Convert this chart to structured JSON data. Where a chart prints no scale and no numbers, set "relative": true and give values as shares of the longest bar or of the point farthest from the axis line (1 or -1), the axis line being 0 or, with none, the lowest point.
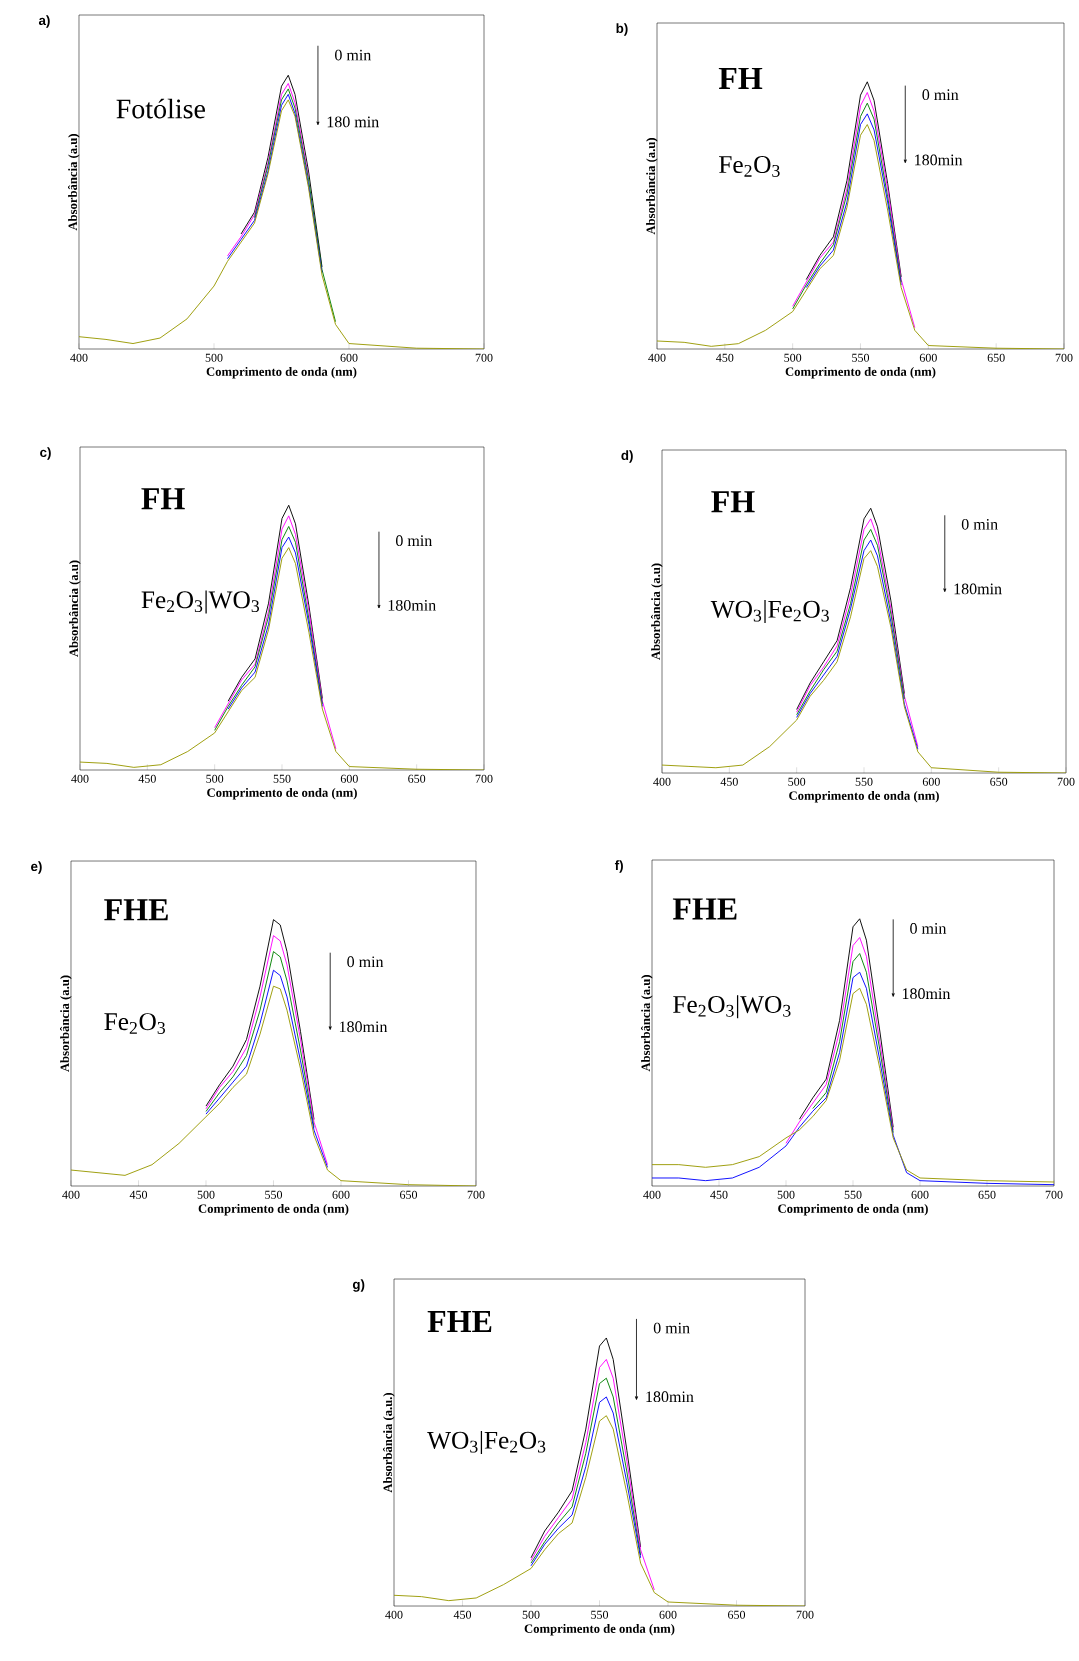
{
  "chart_data": [
    {
      "type": "line",
      "title": "Fotólise",
      "xlabel": "Comprimento de onda (nm)",
      "ylabel": "Absorbância (a.u)",
      "annotations": [
        "a)",
        "0 min",
        "180 min"
      ],
      "relative": true,
      "xlim": [
        400,
        700
      ],
      "xticks": [
        400,
        500,
        600,
        700
      ],
      "x": [
        400,
        420,
        440,
        460,
        480,
        500,
        510,
        520,
        530,
        540,
        550,
        555,
        560,
        570,
        580,
        590,
        600,
        650,
        700
      ],
      "series": [
        {
          "color": "#000000",
          "values": [
            null,
            null,
            null,
            null,
            null,
            null,
            null,
            0.42,
            0.5,
            0.7,
            0.96,
            1.0,
            0.93,
            0.65,
            0.3,
            null,
            null,
            null,
            null
          ]
        },
        {
          "color": "#ff00ff",
          "values": [
            null,
            null,
            null,
            null,
            null,
            null,
            0.34,
            0.41,
            0.49,
            0.68,
            0.93,
            0.97,
            0.9,
            0.63,
            null,
            null,
            null,
            null,
            null
          ]
        },
        {
          "color": "#008000",
          "values": [
            null,
            null,
            null,
            null,
            null,
            null,
            null,
            null,
            0.48,
            0.67,
            0.91,
            0.95,
            0.88,
            0.62,
            0.29,
            0.1,
            null,
            null,
            null
          ]
        },
        {
          "color": "#0000ff",
          "values": [
            null,
            null,
            null,
            null,
            null,
            null,
            0.33,
            0.4,
            0.47,
            0.65,
            0.89,
            0.93,
            0.86,
            0.6,
            0.28,
            null,
            null,
            null,
            null
          ]
        },
        {
          "color": "#999900",
          "values": [
            0.045,
            0.035,
            0.02,
            0.04,
            0.11,
            0.23,
            0.32,
            0.39,
            0.46,
            0.64,
            0.87,
            0.91,
            0.85,
            0.59,
            0.27,
            0.09,
            0.02,
            0.003,
            0
          ]
        }
      ]
    },
    {
      "type": "line",
      "title": "FH",
      "subtitle": "Fe$_{2}$O$_{3}$",
      "xlabel": "Comprimento de onda (nm)",
      "ylabel": "Absorbância (a.u)",
      "annotations": [
        "b)",
        "0 min",
        "180min"
      ],
      "relative": true,
      "xlim": [
        400,
        700
      ],
      "xticks": [
        400,
        450,
        500,
        550,
        600,
        650,
        700
      ],
      "x": [
        400,
        420,
        440,
        460,
        480,
        500,
        510,
        520,
        530,
        540,
        550,
        555,
        560,
        570,
        580,
        590,
        600,
        650,
        700
      ],
      "series": [
        {
          "color": "#000000",
          "values": [
            null,
            null,
            null,
            null,
            null,
            null,
            0.26,
            0.35,
            0.42,
            0.63,
            0.95,
            1.0,
            0.93,
            0.62,
            0.27,
            null,
            null,
            null,
            null
          ]
        },
        {
          "color": "#ff00ff",
          "values": [
            null,
            null,
            null,
            null,
            null,
            0.16,
            0.25,
            0.34,
            0.4,
            0.6,
            0.91,
            0.96,
            0.89,
            0.6,
            0.26,
            0.08,
            null,
            null,
            null
          ]
        },
        {
          "color": "#008000",
          "values": [
            null,
            null,
            null,
            null,
            null,
            0.15,
            0.24,
            0.32,
            0.39,
            0.58,
            0.87,
            0.92,
            0.86,
            0.57,
            0.25,
            null,
            null,
            null,
            null
          ]
        },
        {
          "color": "#0000ff",
          "values": [
            null,
            null,
            null,
            null,
            null,
            null,
            0.23,
            0.31,
            0.37,
            0.55,
            0.84,
            0.88,
            0.82,
            0.55,
            0.24,
            null,
            null,
            null,
            null
          ]
        },
        {
          "color": "#999900",
          "values": [
            0.03,
            0.025,
            0.01,
            0.02,
            0.07,
            0.14,
            0.22,
            0.3,
            0.35,
            0.53,
            0.8,
            0.84,
            0.78,
            0.52,
            0.23,
            0.07,
            0.013,
            0.003,
            0
          ]
        }
      ]
    },
    {
      "type": "line",
      "title": "FH",
      "subtitle": "Fe$_{2}$O$_{3}$|WO$_{3}$",
      "xlabel": "Comprimento de onda (nm)",
      "ylabel": "Absorbância (a.u)",
      "annotations": [
        "c)",
        "0 min",
        "180min"
      ],
      "relative": true,
      "xlim": [
        400,
        700
      ],
      "xticks": [
        400,
        450,
        500,
        550,
        600,
        650,
        700
      ],
      "x": [
        400,
        420,
        440,
        460,
        480,
        500,
        510,
        520,
        530,
        540,
        550,
        555,
        560,
        570,
        580,
        590,
        600,
        650,
        700
      ],
      "series": [
        {
          "color": "#000000",
          "values": [
            null,
            null,
            null,
            null,
            null,
            null,
            0.26,
            0.35,
            0.42,
            0.63,
            0.95,
            1.0,
            0.93,
            0.62,
            0.27,
            null,
            null,
            null,
            null
          ]
        },
        {
          "color": "#ff00ff",
          "values": [
            null,
            null,
            null,
            null,
            null,
            0.16,
            0.25,
            0.34,
            0.4,
            0.6,
            0.91,
            0.96,
            0.89,
            0.6,
            0.26,
            0.08,
            null,
            null,
            null
          ]
        },
        {
          "color": "#008000",
          "values": [
            null,
            null,
            null,
            null,
            null,
            0.15,
            0.24,
            0.32,
            0.39,
            0.58,
            0.87,
            0.92,
            0.86,
            0.57,
            0.25,
            null,
            null,
            null,
            null
          ]
        },
        {
          "color": "#0000ff",
          "values": [
            null,
            null,
            null,
            null,
            null,
            null,
            0.23,
            0.31,
            0.37,
            0.55,
            0.84,
            0.88,
            0.82,
            0.55,
            0.24,
            null,
            null,
            null,
            null
          ]
        },
        {
          "color": "#999900",
          "values": [
            0.03,
            0.025,
            0.01,
            0.02,
            0.07,
            0.14,
            0.22,
            0.3,
            0.35,
            0.53,
            0.8,
            0.84,
            0.78,
            0.52,
            0.23,
            0.07,
            0.013,
            0.003,
            0
          ]
        }
      ]
    },
    {
      "type": "line",
      "title": "FH",
      "subtitle": "WO$_{3}$|Fe$_{2}$O$_{3}$",
      "xlabel": "Comprimento de onda (nm)",
      "ylabel": "Absorbância (a.u)",
      "annotations": [
        "d)",
        "0 min",
        "180min"
      ],
      "relative": true,
      "xlim": [
        400,
        700
      ],
      "xticks": [
        400,
        450,
        500,
        550,
        600,
        650,
        700
      ],
      "x": [
        400,
        420,
        440,
        460,
        480,
        500,
        510,
        520,
        530,
        540,
        550,
        555,
        560,
        570,
        580,
        590,
        600,
        650,
        700
      ],
      "series": [
        {
          "color": "#000000",
          "values": [
            null,
            null,
            null,
            null,
            null,
            0.24,
            0.34,
            0.42,
            0.5,
            0.7,
            0.96,
            1.0,
            0.93,
            0.65,
            0.3,
            null,
            null,
            null,
            null
          ]
        },
        {
          "color": "#ff00ff",
          "values": [
            null,
            null,
            null,
            null,
            null,
            0.23,
            0.33,
            0.4,
            0.48,
            0.67,
            0.92,
            0.96,
            0.89,
            0.62,
            0.29,
            0.1,
            null,
            null,
            null
          ]
        },
        {
          "color": "#008000",
          "values": [
            null,
            null,
            null,
            null,
            null,
            0.22,
            0.31,
            0.39,
            0.46,
            0.64,
            0.88,
            0.92,
            0.86,
            0.6,
            0.28,
            null,
            null,
            null,
            null
          ]
        },
        {
          "color": "#0000ff",
          "values": [
            null,
            null,
            null,
            null,
            null,
            0.21,
            0.3,
            0.37,
            0.44,
            0.62,
            0.84,
            0.88,
            0.82,
            0.57,
            0.26,
            0.09,
            null,
            null,
            null
          ]
        },
        {
          "color": "#999900",
          "values": [
            0.03,
            0.025,
            0.02,
            0.03,
            0.1,
            0.2,
            0.29,
            0.35,
            0.42,
            0.59,
            0.81,
            0.84,
            0.78,
            0.55,
            0.25,
            0.08,
            0.02,
            0.003,
            0
          ]
        }
      ]
    },
    {
      "type": "line",
      "title": "FHE",
      "subtitle": "Fe$_{2}$O$_{3}$",
      "xlabel": "Comprimento de onda (nm)",
      "ylabel": "Absorbância (a.u)",
      "annotations": [
        "e)",
        "0 min",
        "180min"
      ],
      "relative": true,
      "xlim": [
        400,
        700
      ],
      "xticks": [
        400,
        450,
        500,
        550,
        600,
        650,
        700
      ],
      "x": [
        400,
        420,
        440,
        460,
        480,
        500,
        510,
        520,
        530,
        540,
        550,
        555,
        560,
        570,
        580,
        590,
        600,
        650,
        700
      ],
      "series": [
        {
          "color": "#000000",
          "values": [
            null,
            null,
            null,
            null,
            null,
            0.3,
            0.38,
            0.45,
            0.55,
            0.75,
            1.0,
            0.98,
            0.88,
            0.58,
            0.25,
            null,
            null,
            null,
            null
          ]
        },
        {
          "color": "#ff00ff",
          "values": [
            null,
            null,
            null,
            null,
            null,
            0.29,
            0.37,
            0.43,
            0.52,
            0.71,
            0.94,
            0.92,
            0.83,
            0.55,
            0.24,
            0.08,
            null,
            null,
            null
          ]
        },
        {
          "color": "#008000",
          "values": [
            null,
            null,
            null,
            null,
            null,
            0.28,
            0.35,
            0.41,
            0.49,
            0.66,
            0.88,
            0.86,
            0.77,
            0.51,
            0.22,
            null,
            null,
            null,
            null
          ]
        },
        {
          "color": "#0000ff",
          "values": [
            null,
            null,
            null,
            null,
            null,
            0.27,
            0.33,
            0.39,
            0.45,
            0.61,
            0.81,
            0.79,
            0.71,
            0.47,
            0.21,
            0.07,
            null,
            null,
            null
          ]
        },
        {
          "color": "#999900",
          "values": [
            0.06,
            0.05,
            0.04,
            0.08,
            0.16,
            0.26,
            0.31,
            0.37,
            0.42,
            0.57,
            0.75,
            0.74,
            0.66,
            0.44,
            0.19,
            0.06,
            0.02,
            0.005,
            0
          ]
        }
      ]
    },
    {
      "type": "line",
      "title": "FHE",
      "subtitle": "Fe$_{2}$O$_{3}$|WO$_{3}$",
      "xlabel": "Comprimento de onda (nm)",
      "ylabel": "Absorbância (a.u)",
      "annotations": [
        "f)",
        "0 min",
        "180min"
      ],
      "relative": true,
      "xlim": [
        400,
        700
      ],
      "xticks": [
        400,
        450,
        500,
        550,
        600,
        650,
        700
      ],
      "x": [
        400,
        420,
        440,
        460,
        480,
        500,
        510,
        520,
        530,
        540,
        550,
        555,
        560,
        570,
        580,
        590,
        600,
        650,
        700
      ],
      "series": [
        {
          "color": "#000000",
          "values": [
            null,
            null,
            null,
            null,
            null,
            null,
            0.25,
            0.33,
            0.4,
            0.62,
            0.97,
            1.0,
            0.92,
            0.58,
            0.22,
            null,
            null,
            null,
            null
          ]
        },
        {
          "color": "#ff00ff",
          "values": [
            null,
            null,
            null,
            null,
            null,
            0.16,
            0.24,
            0.31,
            0.38,
            0.58,
            0.9,
            0.93,
            0.86,
            0.54,
            0.21,
            null,
            null,
            null,
            null
          ]
        },
        {
          "color": "#008000",
          "values": [
            null,
            null,
            null,
            null,
            null,
            null,
            null,
            0.29,
            0.35,
            0.54,
            0.84,
            0.87,
            0.8,
            0.51,
            0.2,
            null,
            null,
            null,
            null
          ]
        },
        {
          "color": "#0000ff",
          "values": [
            0.03,
            0.03,
            0.02,
            0.03,
            0.07,
            0.15,
            0.22,
            0.28,
            0.33,
            0.5,
            0.78,
            0.8,
            0.74,
            0.47,
            0.19,
            0.05,
            0.02,
            0.01,
            0.005
          ]
        },
        {
          "color": "#999900",
          "values": [
            0.08,
            0.08,
            0.07,
            0.08,
            0.11,
            0.18,
            0.21,
            0.26,
            0.32,
            0.47,
            0.72,
            0.74,
            0.68,
            0.44,
            0.18,
            0.06,
            0.03,
            0.02,
            0.015
          ]
        }
      ]
    },
    {
      "type": "line",
      "title": "FHE",
      "subtitle": "WO$_{3}$|Fe$_{2}$O$_{3}$",
      "xlabel": "Comprimento de onda (nm)",
      "ylabel": "Absorbância (a.u.)",
      "annotations": [
        "g)",
        "0 min",
        "180min"
      ],
      "relative": true,
      "xlim": [
        400,
        700
      ],
      "xticks": [
        400,
        450,
        500,
        550,
        600,
        650,
        700
      ],
      "x": [
        400,
        420,
        440,
        460,
        480,
        500,
        510,
        520,
        530,
        540,
        550,
        555,
        560,
        570,
        580,
        590,
        600,
        650,
        700
      ],
      "series": [
        {
          "color": "#000000",
          "values": [
            null,
            null,
            null,
            null,
            null,
            0.18,
            0.28,
            0.35,
            0.43,
            0.66,
            0.97,
            1.0,
            0.92,
            0.58,
            0.22,
            null,
            null,
            null,
            null
          ]
        },
        {
          "color": "#ff00ff",
          "values": [
            null,
            null,
            null,
            null,
            null,
            0.17,
            0.26,
            0.33,
            0.4,
            0.61,
            0.89,
            0.92,
            0.85,
            0.54,
            0.21,
            0.06,
            null,
            null,
            null
          ]
        },
        {
          "color": "#008000",
          "values": [
            null,
            null,
            null,
            null,
            null,
            0.16,
            0.24,
            0.31,
            0.37,
            0.57,
            0.83,
            0.85,
            0.78,
            0.5,
            0.19,
            null,
            null,
            null,
            null
          ]
        },
        {
          "color": "#0000ff",
          "values": [
            null,
            null,
            null,
            null,
            null,
            0.15,
            0.23,
            0.29,
            0.34,
            0.52,
            0.76,
            0.78,
            0.72,
            0.46,
            0.18,
            null,
            null,
            null,
            null
          ]
        },
        {
          "color": "#999900",
          "values": [
            0.04,
            0.035,
            0.02,
            0.03,
            0.08,
            0.14,
            0.21,
            0.27,
            0.31,
            0.48,
            0.69,
            0.71,
            0.66,
            0.42,
            0.16,
            0.05,
            0.015,
            0.003,
            0
          ]
        }
      ]
    }
  ]
}
